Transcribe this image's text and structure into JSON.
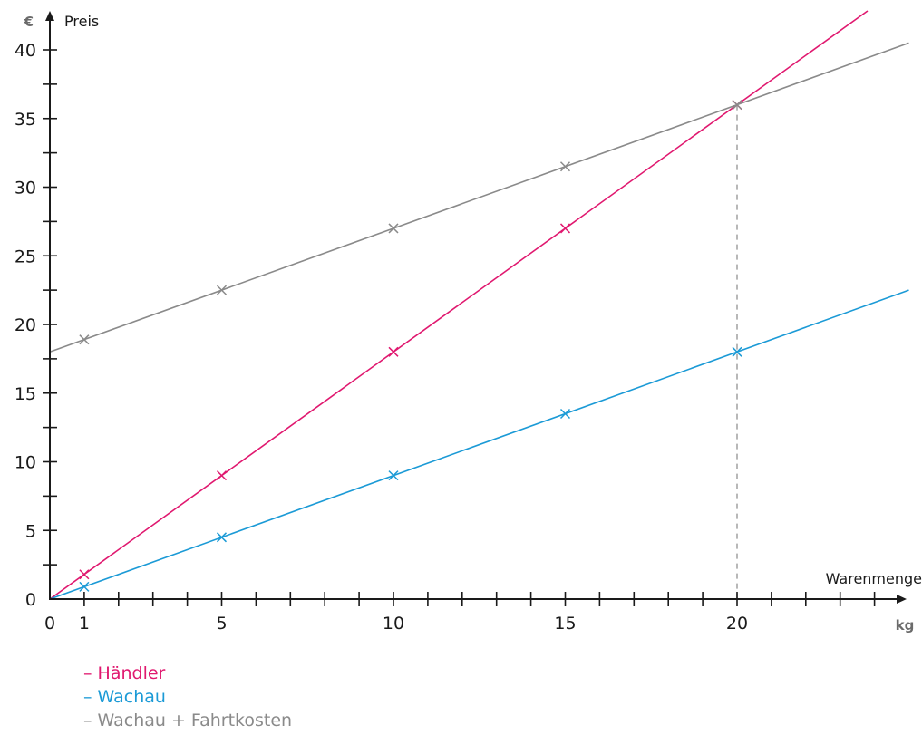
{
  "colors": {
    "axis": "#1a1a1a",
    "grid_dashed": "#a0a0a0"
  },
  "chart_data": {
    "type": "line",
    "title": "",
    "xlabel": "Warenmenge",
    "ylabel": "Preis",
    "x_unit": "kg",
    "y_unit": "€",
    "xlim": [
      0,
      25
    ],
    "ylim": [
      0,
      42
    ],
    "x_tick_labels": [
      "0",
      "1",
      "5",
      "10",
      "15",
      "20"
    ],
    "x_tick_values": [
      0,
      1,
      5,
      10,
      15,
      20
    ],
    "y_tick_labels": [
      "0",
      "5",
      "10",
      "15",
      "20",
      "25",
      "30",
      "35",
      "40"
    ],
    "y_tick_values": [
      0,
      5,
      10,
      15,
      20,
      25,
      30,
      35,
      40
    ],
    "series": [
      {
        "name": "– Händler",
        "color": "#e0186f",
        "slope": 1.8,
        "intercept": 0,
        "x": [
          1,
          5,
          10,
          15,
          20
        ],
        "y": [
          1.8,
          9,
          18,
          27,
          36
        ]
      },
      {
        "name": "– Wachau",
        "color": "#1b9ad6",
        "slope": 0.9,
        "intercept": 0,
        "x": [
          1,
          5,
          10,
          15,
          20
        ],
        "y": [
          0.9,
          4.5,
          9,
          13.5,
          18
        ]
      },
      {
        "name": "– Wachau + Fahrtkosten",
        "color": "#8a8a8a",
        "slope": 0.9,
        "intercept": 18,
        "x": [
          1,
          5,
          10,
          15,
          20
        ],
        "y": [
          18.9,
          22.5,
          27,
          31.5,
          36
        ]
      }
    ],
    "annotations": [
      {
        "type": "vertical-dashed-line",
        "x": 20
      }
    ],
    "legend_placement": "bottom-left"
  }
}
